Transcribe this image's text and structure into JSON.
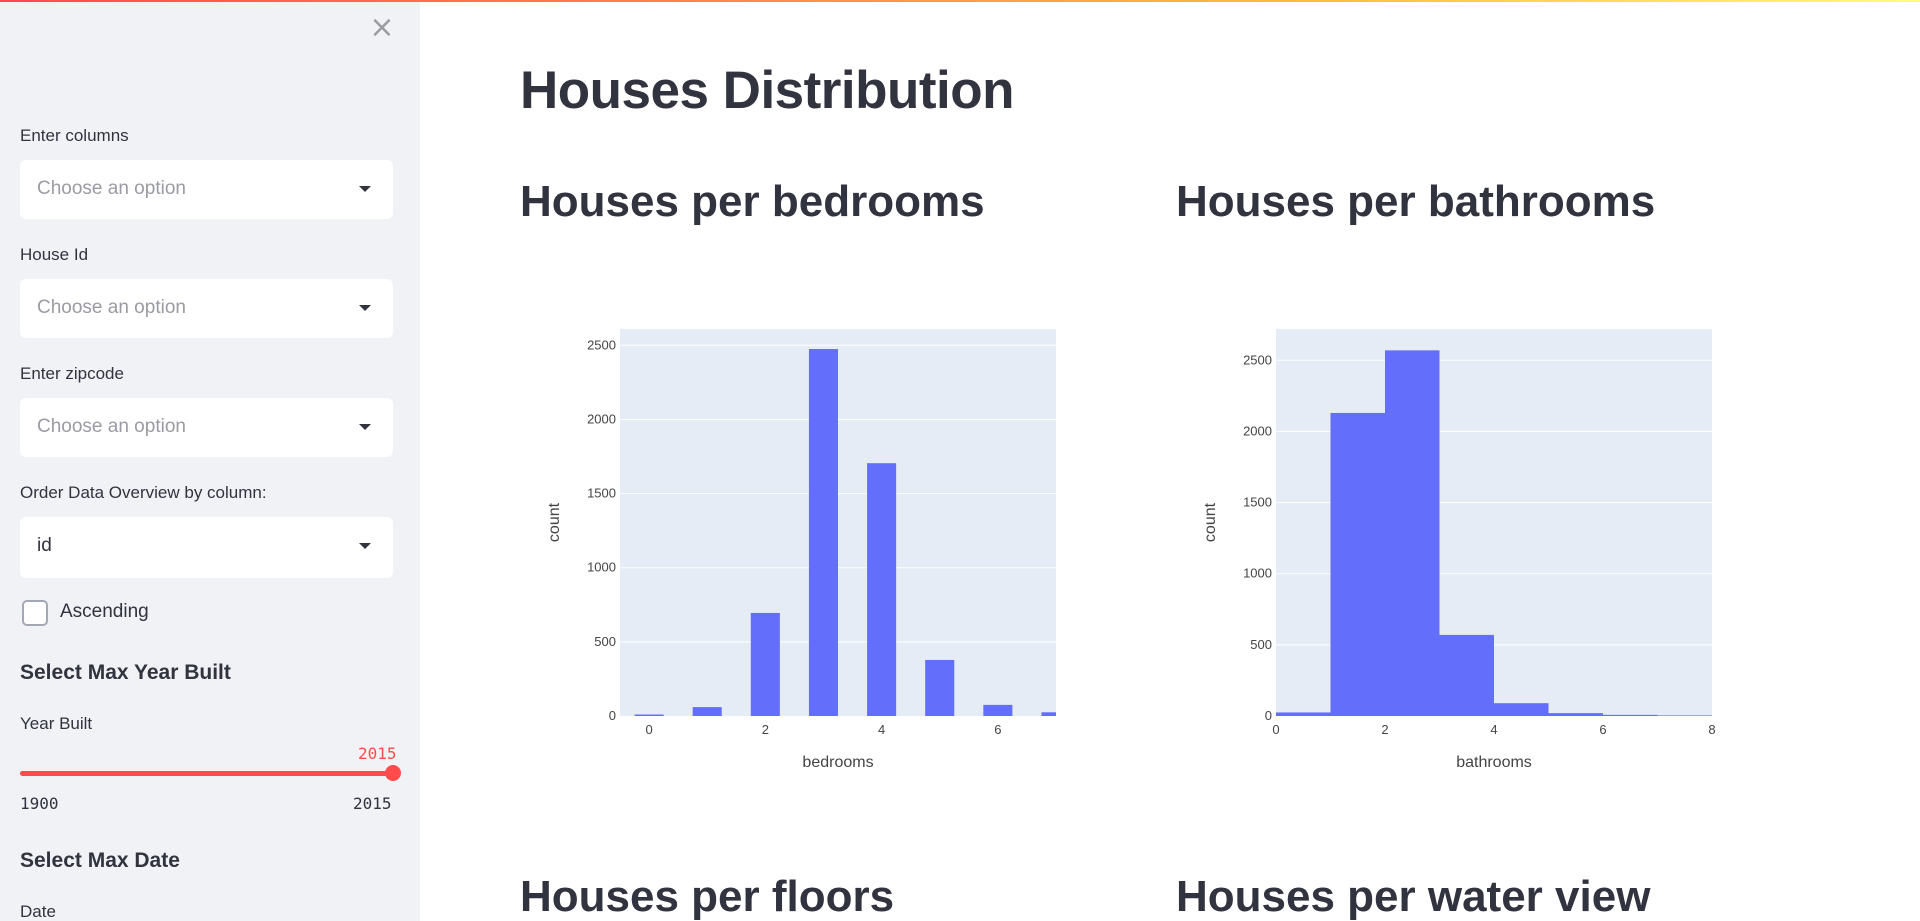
{
  "sidebar": {
    "close_icon": "×",
    "columns": {
      "label": "Enter columns",
      "placeholder": "Choose an option"
    },
    "house_id": {
      "label": "House Id",
      "placeholder": "Choose an option"
    },
    "zipcode": {
      "label": "Enter zipcode",
      "placeholder": "Choose an option"
    },
    "order": {
      "label": "Order Data Overview by column:",
      "value": "id"
    },
    "ascending_label": "Ascending",
    "year_section_title": "Select Max Year Built",
    "year_slider": {
      "label": "Year Built",
      "min": 1900,
      "max": 2015,
      "value": 2015,
      "min_label": "1900",
      "max_label": "2015",
      "value_label": "2015"
    },
    "date_section_title": "Select Max Date",
    "date_label": "Date"
  },
  "main": {
    "title": "Houses Distribution",
    "chart_titles": {
      "bedrooms": "Houses per bedrooms",
      "bathrooms": "Houses per bathrooms",
      "floors": "Houses per floors",
      "waterview": "Houses per water view"
    }
  },
  "colors": {
    "accent": "#ff4b4b",
    "bar": "#636efa",
    "plot_bg": "#e5ecf6",
    "sidebar_bg": "#f0f2f6"
  },
  "chart_data": [
    {
      "type": "bar",
      "title": "Houses per bedrooms",
      "xlabel": "bedrooms",
      "ylabel": "count",
      "xlim": [
        -0.5,
        7.0
      ],
      "ylim": [
        0,
        2610
      ],
      "x_ticks": [
        0,
        2,
        4,
        6
      ],
      "y_ticks": [
        0,
        500,
        1000,
        1500,
        2000,
        2500
      ],
      "bar_width": 0.5,
      "x": [
        0,
        1,
        2,
        3,
        4,
        5,
        6,
        7
      ],
      "values": [
        10,
        60,
        695,
        2475,
        1705,
        378,
        75,
        25
      ]
    },
    {
      "type": "bar",
      "title": "Houses per bathrooms",
      "xlabel": "bathrooms",
      "ylabel": "count",
      "xlim": [
        0,
        8
      ],
      "ylim": [
        0,
        2720
      ],
      "x_ticks": [
        0,
        2,
        4,
        6,
        8
      ],
      "y_ticks": [
        0,
        500,
        1000,
        1500,
        2000,
        2500
      ],
      "bins": [
        [
          0,
          1
        ],
        [
          1,
          2
        ],
        [
          2,
          3
        ],
        [
          3,
          4
        ],
        [
          4,
          5
        ],
        [
          5,
          6
        ],
        [
          6,
          7
        ],
        [
          7,
          8
        ]
      ],
      "values": [
        25,
        2130,
        2570,
        570,
        90,
        20,
        8,
        4
      ]
    }
  ]
}
